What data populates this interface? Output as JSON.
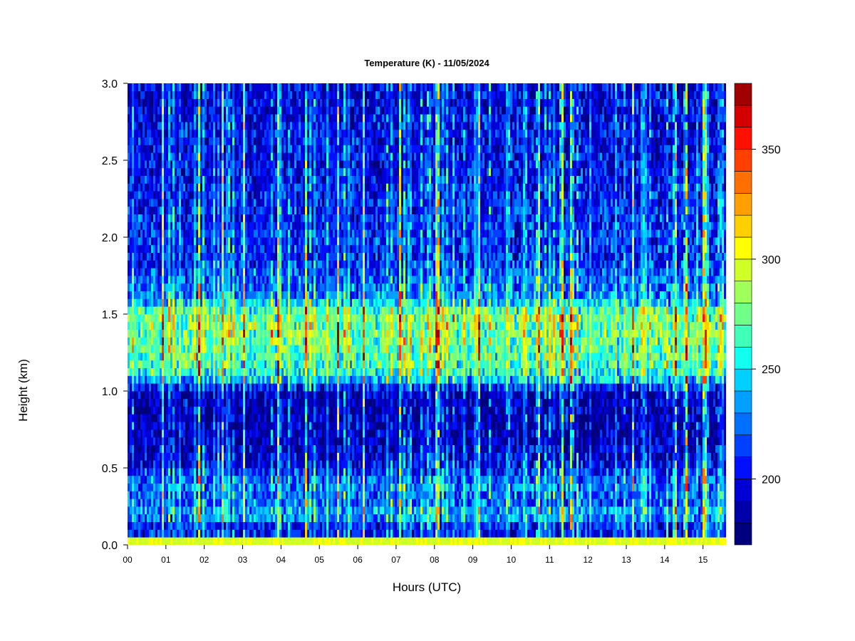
{
  "chart_data": {
    "type": "heatmap",
    "title": "Temperature (K) - 11/05/2024",
    "xlabel": "Hours (UTC)",
    "ylabel": "Height (km)",
    "xlim": [
      0,
      15.6
    ],
    "ylim": [
      0,
      3.0
    ],
    "x_ticks": [
      "00",
      "01",
      "02",
      "03",
      "04",
      "05",
      "06",
      "07",
      "08",
      "09",
      "10",
      "11",
      "12",
      "13",
      "14",
      "15"
    ],
    "y_ticks": [
      "0.0",
      "0.5",
      "1.0",
      "1.5",
      "2.0",
      "2.5",
      "3.0"
    ],
    "colorbar": {
      "range": [
        170,
        380
      ],
      "ticks": [
        "200",
        "250",
        "300",
        "350"
      ],
      "levels": [
        170,
        180,
        190,
        200,
        210,
        220,
        230,
        240,
        250,
        260,
        270,
        280,
        290,
        300,
        310,
        320,
        330,
        340,
        350,
        360,
        370,
        380
      ],
      "colors": [
        "#00007f",
        "#0000a8",
        "#0000d4",
        "#0010ff",
        "#0040ff",
        "#0070ff",
        "#00a0ff",
        "#00d0ff",
        "#10fff0",
        "#40ffb8",
        "#70ff88",
        "#a0ff58",
        "#d0ff28",
        "#ffff00",
        "#ffd000",
        "#ffa000",
        "#ff7000",
        "#ff4000",
        "#ff1000",
        "#d40000",
        "#a00000"
      ]
    },
    "height_layer_profile": {
      "heights_km": [
        0.0,
        0.05,
        0.1,
        0.2,
        0.3,
        0.4,
        0.5,
        0.7,
        1.0,
        1.1,
        1.3,
        1.5,
        1.6,
        1.9,
        2.0,
        2.2,
        2.5,
        3.0
      ],
      "typical_temperature_K": [
        290,
        210,
        195,
        240,
        215,
        230,
        200,
        185,
        185,
        255,
        270,
        275,
        230,
        205,
        210,
        205,
        200,
        195
      ]
    }
  }
}
